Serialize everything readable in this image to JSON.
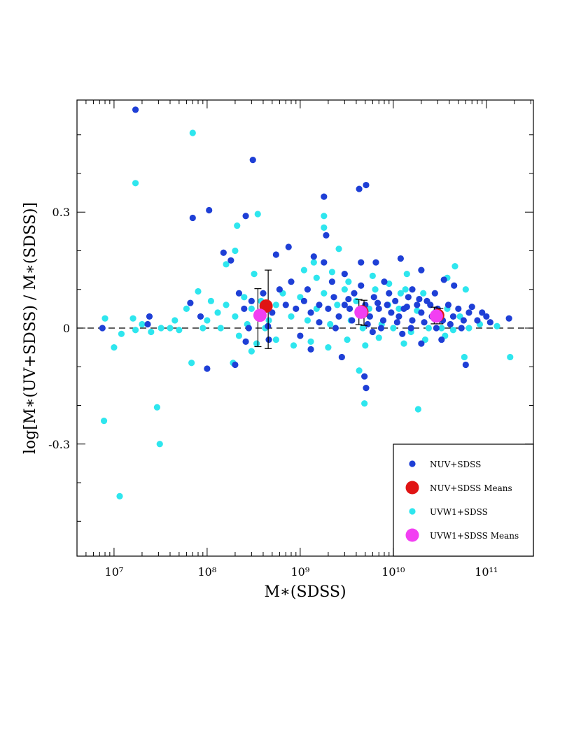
{
  "chart_data": {
    "type": "scatter",
    "title": "",
    "xlabel": "M∗(SDSS)",
    "ylabel": "log[M∗(UV+SDSS) / M∗(SDSS)]",
    "x_scale": "log",
    "xlim": [
      4000000.0,
      320000000000.0
    ],
    "ylim": [
      -0.59,
      0.59
    ],
    "x_ticks": [
      {
        "value": 10000000.0,
        "label": "10⁷"
      },
      {
        "value": 100000000.0,
        "label": "10⁸"
      },
      {
        "value": 1000000000.0,
        "label": "10⁹"
      },
      {
        "value": 10000000000.0,
        "label": "10¹⁰"
      },
      {
        "value": 100000000000.0,
        "label": "10¹¹"
      }
    ],
    "y_ticks": [
      {
        "value": -0.3,
        "label": "-0.3"
      },
      {
        "value": 0,
        "label": "0"
      },
      {
        "value": 0.3,
        "label": "0.3"
      }
    ],
    "reference_line": {
      "y": 0,
      "style": "dashed"
    },
    "grid": false,
    "legend_position": "bottom-right",
    "series": [
      {
        "name": "NUV+SDSS",
        "color": "#1e3fd6",
        "marker": "small-dot",
        "points": [
          [
            17000000.0,
            0.565
          ],
          [
            310000000.0,
            0.435
          ],
          [
            70000000.0,
            0.285
          ],
          [
            105000000.0,
            0.305
          ],
          [
            260000000.0,
            0.29
          ],
          [
            1800000000.0,
            0.34
          ],
          [
            4300000000.0,
            0.36
          ],
          [
            5100000000.0,
            0.37
          ],
          [
            1900000000.0,
            0.24
          ],
          [
            150000000.0,
            0.195
          ],
          [
            180000000.0,
            0.175
          ],
          [
            66000000.0,
            0.065
          ],
          [
            85000000.0,
            0.03
          ],
          [
            24000000.0,
            0.03
          ],
          [
            23000000.0,
            0.01
          ],
          [
            7500000.0,
            0.0
          ],
          [
            100000000.0,
            -0.105
          ],
          [
            200000000.0,
            -0.095
          ],
          [
            260000000.0,
            -0.035
          ],
          [
            460000000.0,
            -0.03
          ],
          [
            1300000000.0,
            -0.055
          ],
          [
            2800000000.0,
            -0.075
          ],
          [
            5100000000.0,
            -0.155
          ],
          [
            4900000000.0,
            -0.125
          ],
          [
            20000000000.0,
            -0.04
          ],
          [
            60000000000.0,
            -0.095
          ],
          [
            175000000000.0,
            0.025
          ],
          [
            70000000000.0,
            0.055
          ],
          [
            90000000000.0,
            0.04
          ],
          [
            110000000000.0,
            0.015
          ],
          [
            12000000000.0,
            0.18
          ],
          [
            20000000000.0,
            0.15
          ],
          [
            35000000000.0,
            0.125
          ],
          [
            45000000000.0,
            0.11
          ],
          [
            6500000000.0,
            0.17
          ],
          [
            4500000000.0,
            0.17
          ],
          [
            750000000.0,
            0.21
          ],
          [
            550000000.0,
            0.19
          ],
          [
            1400000000.0,
            0.185
          ],
          [
            1800000000.0,
            0.17
          ],
          [
            3000000000.0,
            0.14
          ],
          [
            800000000.0,
            0.12
          ],
          [
            600000000.0,
            0.1
          ],
          [
            400000000.0,
            0.09
          ],
          [
            300000000.0,
            0.07
          ],
          [
            220000000.0,
            0.09
          ],
          [
            250000000.0,
            0.05
          ],
          [
            350000000.0,
            0.03
          ],
          [
            500000000.0,
            0.04
          ],
          [
            700000000.0,
            0.06
          ],
          [
            900000000.0,
            0.05
          ],
          [
            1100000000.0,
            0.07
          ],
          [
            1300000000.0,
            0.04
          ],
          [
            1600000000.0,
            0.06
          ],
          [
            2000000000.0,
            0.05
          ],
          [
            2300000000.0,
            0.08
          ],
          [
            2600000000.0,
            0.03
          ],
          [
            3000000000.0,
            0.06
          ],
          [
            3400000000.0,
            0.05
          ],
          [
            3800000000.0,
            0.09
          ],
          [
            4200000000.0,
            0.04
          ],
          [
            5000000000.0,
            0.06
          ],
          [
            5600000000.0,
            0.03
          ],
          [
            6200000000.0,
            0.08
          ],
          [
            7000000000.0,
            0.05
          ],
          [
            7800000000.0,
            0.02
          ],
          [
            8600000000.0,
            0.06
          ],
          [
            9500000000.0,
            0.04
          ],
          [
            10500000000.0,
            0.07
          ],
          [
            11500000000.0,
            0.03
          ],
          [
            13000000000.0,
            0.05
          ],
          [
            14500000000.0,
            0.08
          ],
          [
            16000000000.0,
            0.02
          ],
          [
            18000000000.0,
            0.06
          ],
          [
            20000000000.0,
            0.04
          ],
          [
            23000000000.0,
            0.07
          ],
          [
            26000000000.0,
            0.03
          ],
          [
            30000000000.0,
            0.05
          ],
          [
            34000000000.0,
            0.02
          ],
          [
            39000000000.0,
            0.06
          ],
          [
            44000000000.0,
            0.03
          ],
          [
            50000000000.0,
            0.05
          ],
          [
            57000000000.0,
            0.02
          ],
          [
            65000000000.0,
            0.04
          ],
          [
            80000000000.0,
            0.02
          ],
          [
            100000000000.0,
            0.03
          ],
          [
            9000000000.0,
            0.09
          ],
          [
            16000000000.0,
            0.1
          ],
          [
            28000000000.0,
            0.09
          ],
          [
            4500000000.0,
            0.11
          ],
          [
            2200000000.0,
            0.12
          ],
          [
            1200000000.0,
            0.1
          ],
          [
            8000000000.0,
            0.12
          ],
          [
            12500000000.0,
            -0.015
          ],
          [
            33000000000.0,
            -0.03
          ],
          [
            6000000000.0,
            -0.01
          ],
          [
            1000000000.0,
            -0.02
          ],
          [
            450000000.0,
            0.005
          ],
          [
            280000000.0,
            0.0
          ],
          [
            1600000000.0,
            0.015
          ],
          [
            2400000000.0,
            0.0
          ],
          [
            3600000000.0,
            0.02
          ],
          [
            5300000000.0,
            0.01
          ],
          [
            7400000000.0,
            0.0
          ],
          [
            11000000000.0,
            0.015
          ],
          [
            15500000000.0,
            0.0
          ],
          [
            21500000000.0,
            0.015
          ],
          [
            29000000000.0,
            0.0
          ],
          [
            41000000000.0,
            0.01
          ],
          [
            54000000000.0,
            0.0
          ],
          [
            3300000000.0,
            0.075
          ],
          [
            19000000000.0,
            0.075
          ],
          [
            25000000000.0,
            0.06
          ],
          [
            6800000000.0,
            0.065
          ],
          [
            14000000000.0,
            0.055
          ]
        ]
      },
      {
        "name": "UVW1+SDSS",
        "color": "#2ee6ee",
        "marker": "small-dot",
        "points": [
          [
            70000000.0,
            0.505
          ],
          [
            17000000.0,
            0.375
          ],
          [
            350000000.0,
            0.295
          ],
          [
            210000000.0,
            0.265
          ],
          [
            1800000000.0,
            0.29
          ],
          [
            1800000000.0,
            0.26
          ],
          [
            2600000000.0,
            0.205
          ],
          [
            1400000000.0,
            0.17
          ],
          [
            200000000.0,
            0.2
          ],
          [
            160000000.0,
            0.165
          ],
          [
            320000000.0,
            0.14
          ],
          [
            8000000.0,
            0.025
          ],
          [
            16000000.0,
            0.025
          ],
          [
            10000000.0,
            -0.05
          ],
          [
            12000000.0,
            -0.015
          ],
          [
            17000000.0,
            -0.005
          ],
          [
            29000000.0,
            -0.205
          ],
          [
            31000000.0,
            -0.3
          ],
          [
            7800000.0,
            -0.24
          ],
          [
            11500000.0,
            -0.435
          ],
          [
            68000000.0,
            -0.09
          ],
          [
            190000000.0,
            -0.09
          ],
          [
            300000000.0,
            -0.06
          ],
          [
            4900000000.0,
            -0.195
          ],
          [
            4300000000.0,
            -0.11
          ],
          [
            18500000000.0,
            -0.21
          ],
          [
            58000000000.0,
            -0.075
          ],
          [
            180000000000.0,
            -0.075
          ],
          [
            46000000000.0,
            0.16
          ],
          [
            38000000000.0,
            0.13
          ],
          [
            60000000000.0,
            0.1
          ],
          [
            9000000000.0,
            0.115
          ],
          [
            12000000000.0,
            0.09
          ],
          [
            80000000.0,
            0.095
          ],
          [
            110000000.0,
            0.07
          ],
          [
            60000000.0,
            0.05
          ],
          [
            45000000.0,
            0.02
          ],
          [
            32000000.0,
            0.0
          ],
          [
            100000000.0,
            0.02
          ],
          [
            130000000.0,
            0.04
          ],
          [
            160000000.0,
            0.06
          ],
          [
            200000000.0,
            0.03
          ],
          [
            250000000.0,
            0.08
          ],
          [
            300000000.0,
            0.05
          ],
          [
            380000000.0,
            0.07
          ],
          [
            460000000.0,
            0.02
          ],
          [
            550000000.0,
            0.06
          ],
          [
            650000000.0,
            0.09
          ],
          [
            800000000.0,
            0.03
          ],
          [
            1000000000.0,
            0.08
          ],
          [
            1200000000.0,
            0.02
          ],
          [
            1500000000.0,
            0.05
          ],
          [
            1800000000.0,
            0.09
          ],
          [
            2100000000.0,
            0.01
          ],
          [
            2500000000.0,
            0.06
          ],
          [
            3000000000.0,
            0.1
          ],
          [
            3500000000.0,
            0.02
          ],
          [
            4000000000.0,
            0.07
          ],
          [
            4700000000.0,
            0.0
          ],
          [
            5500000000.0,
            0.05
          ],
          [
            6400000000.0,
            0.1
          ],
          [
            7500000000.0,
            0.01
          ],
          [
            8800000000.0,
            0.06
          ],
          [
            10000000000.0,
            0.0
          ],
          [
            11500000000.0,
            0.05
          ],
          [
            13500000000.0,
            0.1
          ],
          [
            15500000000.0,
            -0.01
          ],
          [
            18000000000.0,
            0.045
          ],
          [
            21000000000.0,
            0.09
          ],
          [
            24000000000.0,
            0.0
          ],
          [
            28000000000.0,
            0.04
          ],
          [
            33000000000.0,
            0.0
          ],
          [
            38000000000.0,
            0.05
          ],
          [
            44000000000.0,
            -0.005
          ],
          [
            52000000000.0,
            0.03
          ],
          [
            65000000000.0,
            0.0
          ],
          [
            85000000000.0,
            0.01
          ],
          [
            130000000000.0,
            0.005
          ],
          [
            220000000.0,
            -0.02
          ],
          [
            340000000.0,
            -0.04
          ],
          [
            550000000.0,
            -0.03
          ],
          [
            850000000.0,
            -0.045
          ],
          [
            1300000000.0,
            -0.035
          ],
          [
            2000000000.0,
            -0.05
          ],
          [
            3200000000.0,
            -0.03
          ],
          [
            5000000000.0,
            -0.045
          ],
          [
            7000000000.0,
            -0.025
          ],
          [
            13000000000.0,
            -0.04
          ],
          [
            22000000000.0,
            -0.03
          ],
          [
            36000000000.0,
            -0.02
          ],
          [
            1500000000.0,
            0.13
          ],
          [
            2200000000.0,
            0.145
          ],
          [
            3300000000.0,
            0.12
          ],
          [
            1100000000.0,
            0.15
          ],
          [
            6000000000.0,
            0.135
          ],
          [
            14000000000.0,
            0.14
          ],
          [
            90000000.0,
            0.0
          ],
          [
            140000000.0,
            0.0
          ],
          [
            270000000.0,
            0.01
          ],
          [
            420000000.0,
            0.0
          ],
          [
            20000000.0,
            0.01
          ],
          [
            25000000.0,
            -0.01
          ],
          [
            40000000.0,
            0.0
          ],
          [
            50000000.0,
            -0.005
          ]
        ]
      },
      {
        "name": "NUV+SDSS Means",
        "color": "#e01414",
        "marker": "large-dot",
        "points": [
          [
            430000000.0,
            0.057
          ],
          [
            4600000000.0,
            0.042
          ],
          [
            30000000000.0,
            0.033
          ]
        ],
        "error_low": [
          0.11,
          0.035,
          0.022
        ],
        "error_high": [
          0.093,
          0.03,
          0.018
        ]
      },
      {
        "name": "UVW1+SDSS Means",
        "color": "#f23ff2",
        "marker": "large-dot",
        "points": [
          [
            370000000.0,
            0.033
          ],
          [
            4500000000.0,
            0.041
          ],
          [
            29000000000.0,
            0.031
          ]
        ],
        "error_low": [
          0.081,
          0.032,
          0.02
        ],
        "error_high": [
          0.069,
          0.033,
          0.023
        ]
      }
    ],
    "legend": [
      {
        "label": "NUV+SDSS",
        "color": "#1e3fd6",
        "marker": "small-dot"
      },
      {
        "label": "NUV+SDSS Means",
        "color": "#e01414",
        "marker": "large-dot"
      },
      {
        "label": "UVW1+SDSS",
        "color": "#2ee6ee",
        "marker": "small-dot"
      },
      {
        "label": "UVW1+SDSS Means",
        "color": "#f23ff2",
        "marker": "large-dot"
      }
    ]
  }
}
